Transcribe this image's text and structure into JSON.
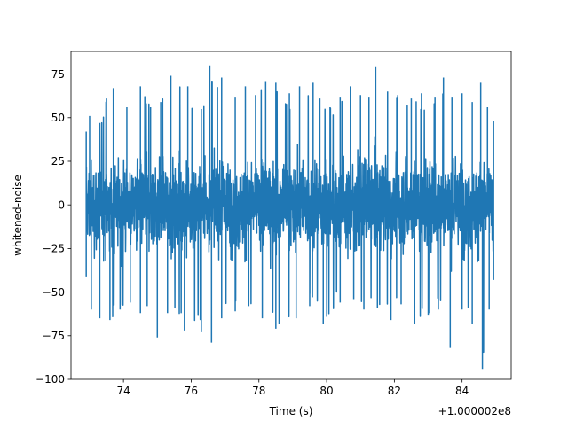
{
  "chart_data": {
    "type": "line",
    "title": "",
    "xlabel": "Time (s)",
    "ylabel": "whitened-noise",
    "x_offset_label": "+1.000002e8",
    "xlim": [
      72.45,
      85.45
    ],
    "ylim": [
      -100,
      88
    ],
    "grid": false,
    "legend": "none",
    "series_color": "#1f77b4",
    "x_ticks": [
      {
        "value": 74,
        "label": "74"
      },
      {
        "value": 76,
        "label": "76"
      },
      {
        "value": 78,
        "label": "78"
      },
      {
        "value": 80,
        "label": "80"
      },
      {
        "value": 82,
        "label": "82"
      },
      {
        "value": 84,
        "label": "84"
      }
    ],
    "y_ticks": [
      {
        "value": -100,
        "label": "−100"
      },
      {
        "value": -75,
        "label": "−75"
      },
      {
        "value": -50,
        "label": "−50"
      },
      {
        "value": -25,
        "label": "−25"
      },
      {
        "value": 0,
        "label": "0"
      },
      {
        "value": 25,
        "label": "25"
      },
      {
        "value": 50,
        "label": "50"
      },
      {
        "value": 75,
        "label": "75"
      }
    ],
    "series": [
      {
        "x_range": [
          72.9,
          84.93
        ],
        "envelope_upper": [
          [
            72.9,
            42
          ],
          [
            73.0,
            51
          ],
          [
            73.3,
            47
          ],
          [
            73.5,
            61
          ],
          [
            73.7,
            67
          ],
          [
            74.1,
            56
          ],
          [
            74.5,
            68
          ],
          [
            74.8,
            56
          ],
          [
            75.1,
            59
          ],
          [
            75.4,
            74
          ],
          [
            75.9,
            68
          ],
          [
            76.3,
            55
          ],
          [
            76.55,
            80
          ],
          [
            76.9,
            73
          ],
          [
            77.3,
            62
          ],
          [
            77.6,
            68
          ],
          [
            77.9,
            63
          ],
          [
            78.2,
            71
          ],
          [
            78.5,
            70
          ],
          [
            78.9,
            64
          ],
          [
            79.2,
            68
          ],
          [
            79.6,
            70
          ],
          [
            79.8,
            61
          ],
          [
            80.1,
            56
          ],
          [
            80.4,
            62
          ],
          [
            80.7,
            68
          ],
          [
            81.0,
            63
          ],
          [
            81.25,
            62
          ],
          [
            81.45,
            79
          ],
          [
            81.8,
            65
          ],
          [
            82.1,
            63
          ],
          [
            82.5,
            61
          ],
          [
            82.8,
            64
          ],
          [
            83.2,
            62
          ],
          [
            83.45,
            73
          ],
          [
            83.7,
            62
          ],
          [
            84.0,
            64
          ],
          [
            84.3,
            59
          ],
          [
            84.55,
            70
          ],
          [
            84.75,
            56
          ],
          [
            84.93,
            48
          ]
        ],
        "envelope_lower": [
          [
            72.9,
            -41
          ],
          [
            73.05,
            -60
          ],
          [
            73.3,
            -65
          ],
          [
            73.6,
            -66
          ],
          [
            73.9,
            -60
          ],
          [
            74.2,
            -56
          ],
          [
            74.5,
            -62
          ],
          [
            74.7,
            -58
          ],
          [
            75.0,
            -76
          ],
          [
            75.3,
            -62
          ],
          [
            75.8,
            -72
          ],
          [
            76.3,
            -73
          ],
          [
            76.6,
            -79
          ],
          [
            76.9,
            -65
          ],
          [
            77.3,
            -61
          ],
          [
            77.7,
            -58
          ],
          [
            78.1,
            -65
          ],
          [
            78.5,
            -71
          ],
          [
            79.1,
            -65
          ],
          [
            79.5,
            -58
          ],
          [
            79.9,
            -68
          ],
          [
            80.4,
            -56
          ],
          [
            80.8,
            -54
          ],
          [
            81.1,
            -60
          ],
          [
            81.5,
            -59
          ],
          [
            81.9,
            -66
          ],
          [
            82.2,
            -57
          ],
          [
            82.6,
            -68
          ],
          [
            83.0,
            -63
          ],
          [
            83.3,
            -60
          ],
          [
            83.65,
            -82
          ],
          [
            84.0,
            -60
          ],
          [
            84.3,
            -68
          ],
          [
            84.6,
            -94
          ],
          [
            84.8,
            -60
          ],
          [
            84.93,
            -43
          ]
        ]
      }
    ]
  }
}
